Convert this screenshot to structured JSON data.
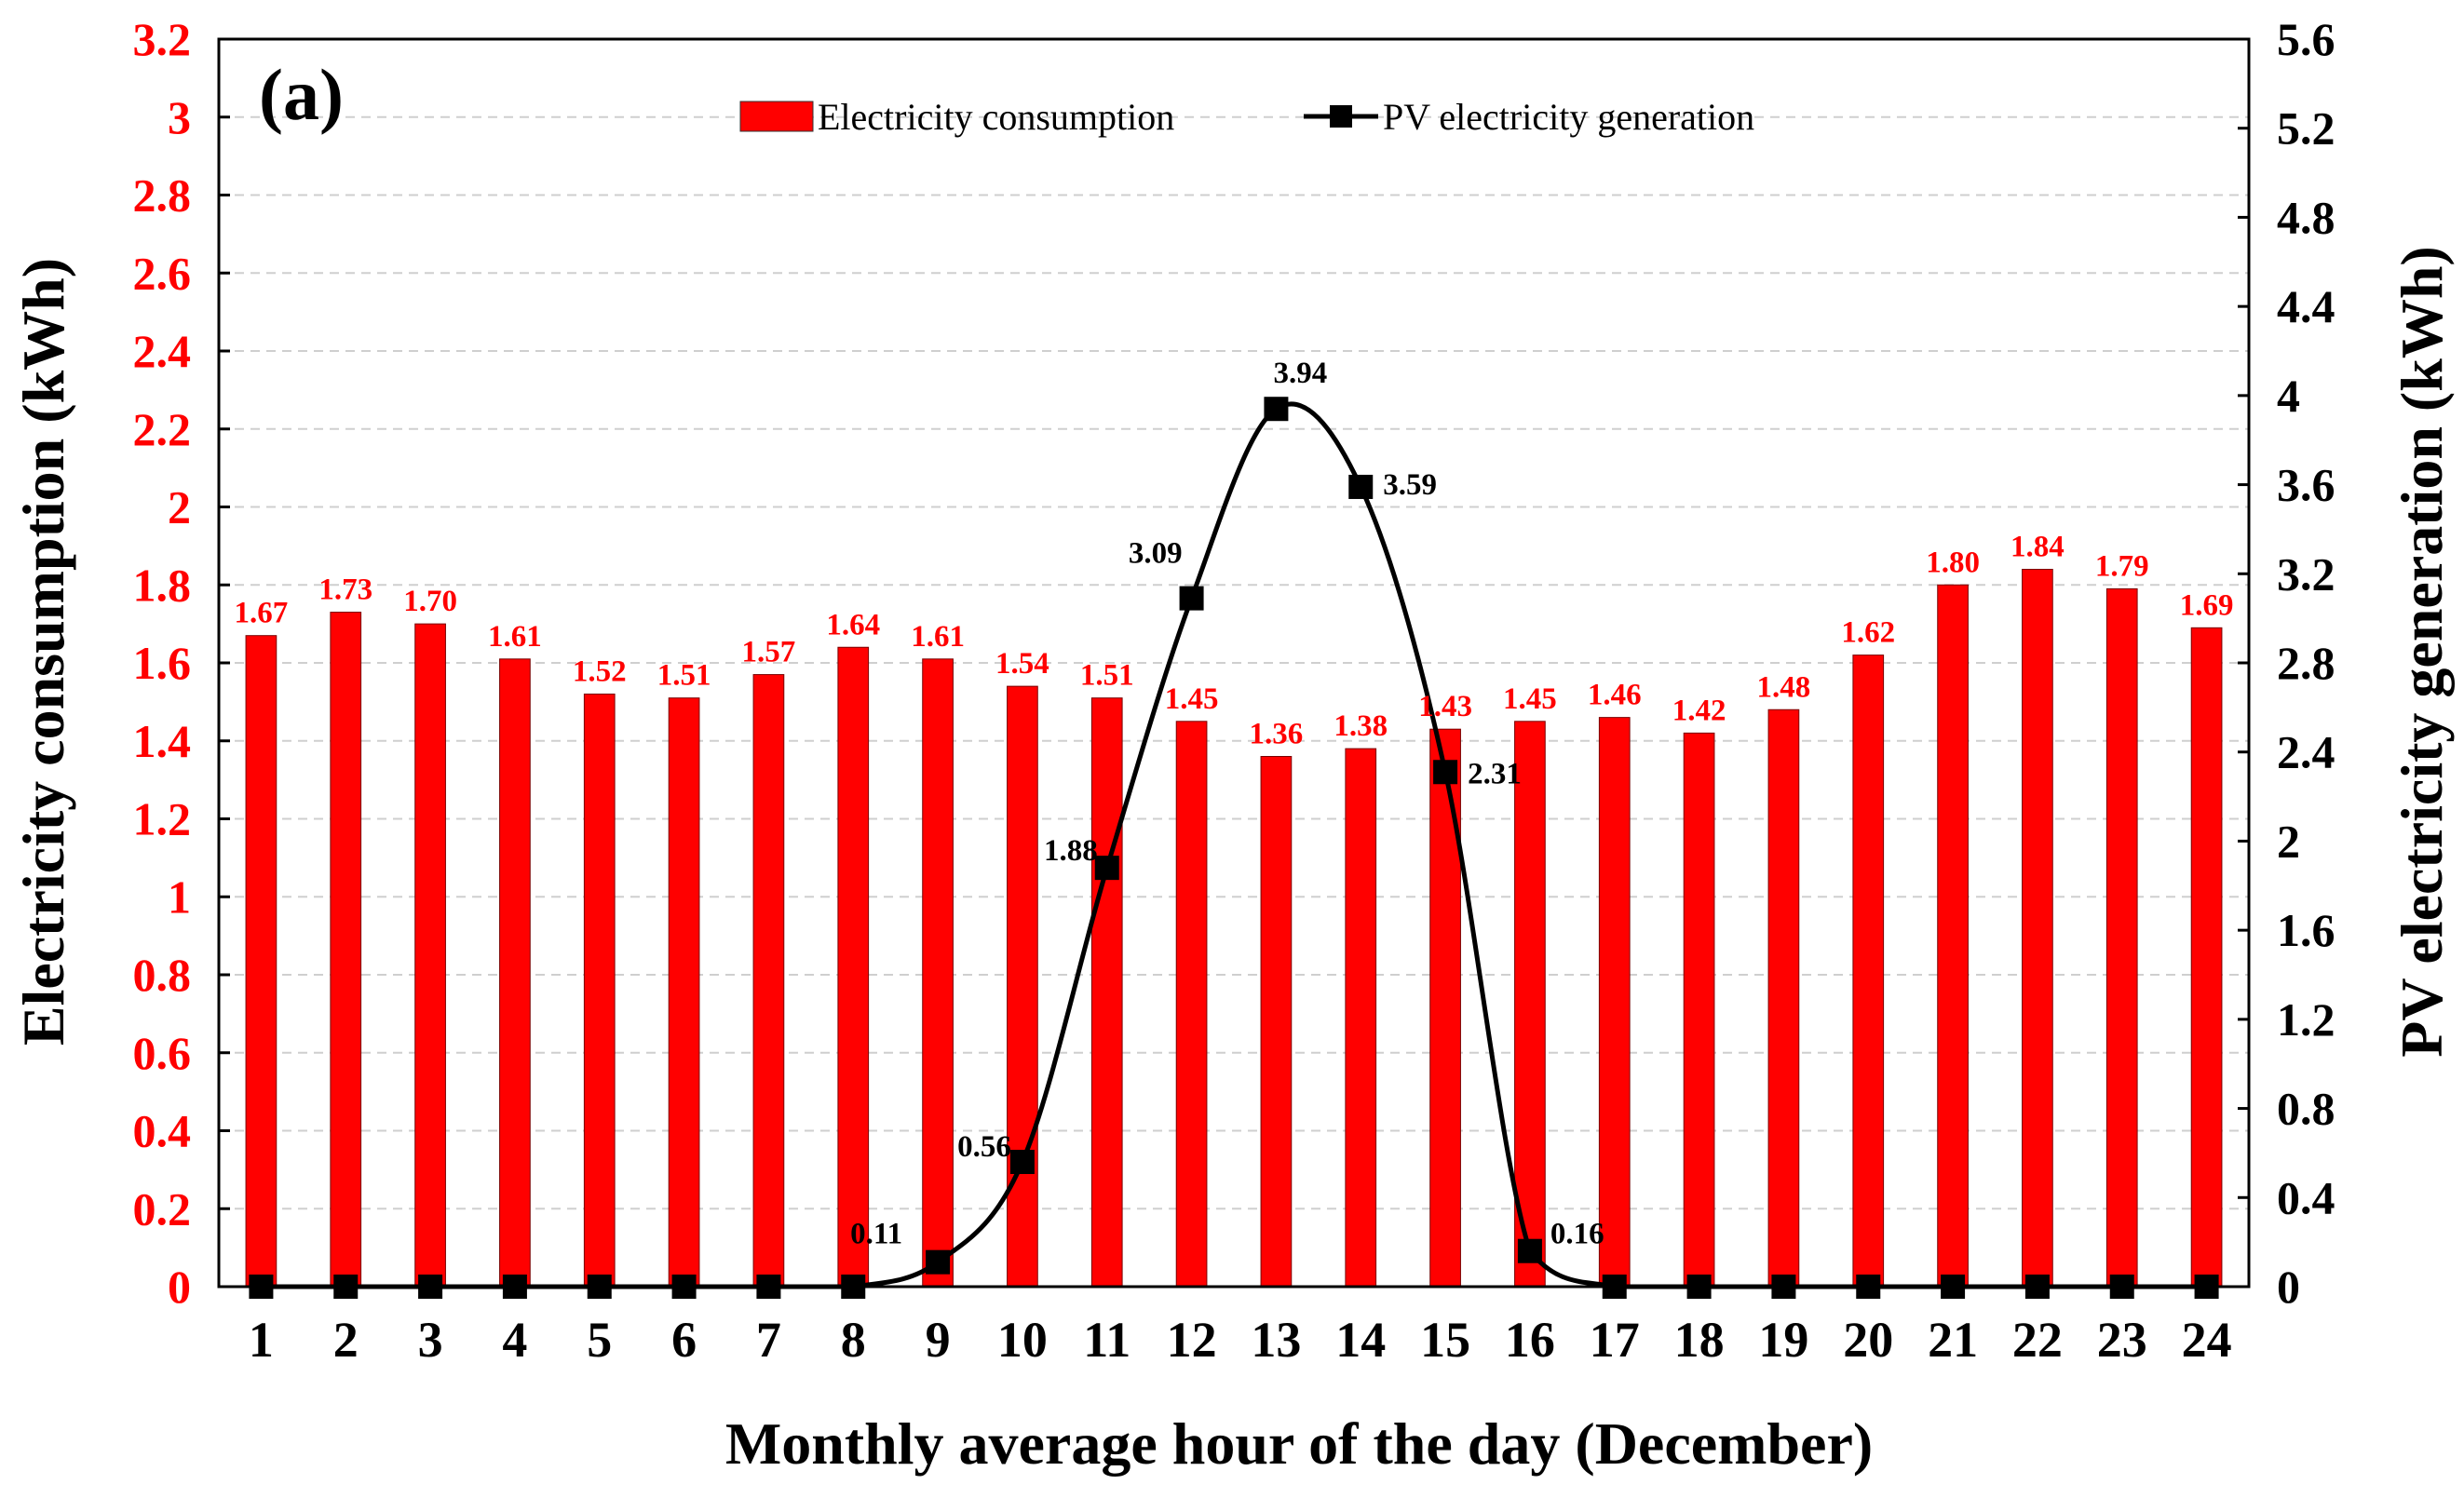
{
  "chart_data": {
    "type": "bar",
    "panel_label": "(a)",
    "xlabel": "Monthly average hour of the day (December)",
    "ylabel_left": "Electricity consumption (kWh)",
    "ylabel_right": "PV electricity generation (kWh)",
    "categories": [
      "1",
      "2",
      "3",
      "4",
      "5",
      "6",
      "7",
      "8",
      "9",
      "10",
      "11",
      "12",
      "13",
      "14",
      "15",
      "16",
      "17",
      "18",
      "19",
      "20",
      "21",
      "22",
      "23",
      "24"
    ],
    "ylim_left": [
      0,
      3.2
    ],
    "ylim_right": [
      0,
      5.6
    ],
    "yticks_left": [
      "0",
      "0.2",
      "0.4",
      "0.6",
      "0.8",
      "1",
      "1.2",
      "1.4",
      "1.6",
      "1.8",
      "2",
      "2.2",
      "2.4",
      "2.6",
      "2.8",
      "3",
      "3.2"
    ],
    "yticks_right": [
      "0",
      "0.4",
      "0.8",
      "1.2",
      "1.6",
      "2",
      "2.4",
      "2.8",
      "3.2",
      "3.6",
      "4",
      "4.4",
      "4.8",
      "5.2",
      "5.6"
    ],
    "grid": true,
    "legend_position": "top-center",
    "series": [
      {
        "name": "Electricity consumption",
        "type": "bar",
        "axis": "left",
        "color": "#ff0000",
        "values": [
          1.67,
          1.73,
          1.7,
          1.61,
          1.52,
          1.51,
          1.57,
          1.64,
          1.61,
          1.54,
          1.51,
          1.45,
          1.36,
          1.38,
          1.43,
          1.45,
          1.46,
          1.42,
          1.48,
          1.62,
          1.8,
          1.84,
          1.79,
          1.69
        ],
        "labels": [
          "1.67",
          "1.73",
          "1.70",
          "1.61",
          "1.52",
          "1.51",
          "1.57",
          "1.64",
          "1.61",
          "1.54",
          "1.51",
          "1.45",
          "1.36",
          "1.38",
          "1.43",
          "1.45",
          "1.46",
          "1.42",
          "1.48",
          "1.62",
          "1.80",
          "1.84",
          "1.79",
          "1.69"
        ]
      },
      {
        "name": "PV electricity generation",
        "type": "line",
        "axis": "right",
        "color": "#000000",
        "marker": "square",
        "values": [
          0,
          0,
          0,
          0,
          0,
          0,
          0,
          0,
          0.11,
          0.56,
          1.88,
          3.09,
          3.94,
          3.59,
          2.31,
          0.16,
          0,
          0,
          0,
          0,
          0,
          0,
          0,
          0
        ],
        "labels": {
          "9": "0.11",
          "10": "0.56",
          "11": "1.88",
          "12": "3.09",
          "13": "3.94",
          "14": "3.59",
          "15": "2.31",
          "16": "0.16"
        }
      }
    ]
  }
}
